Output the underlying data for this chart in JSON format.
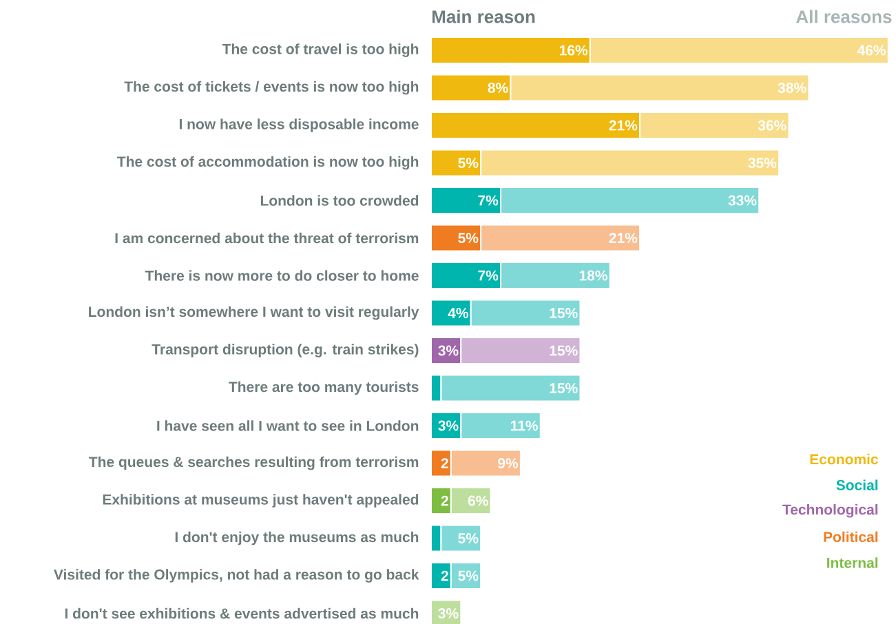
{
  "chart_data": {
    "type": "bar",
    "orientation": "horizontal",
    "stacked": true,
    "legend": "bottom right",
    "annotations": [
      "Main reason",
      "All reasons"
    ],
    "categories": [
      "The cost of travel is too high",
      "The cost of tickets / events is now too high",
      "I now have less disposable income",
      "The cost of accommodation is now too high",
      "London is too crowded",
      "I am concerned about the threat of terrorism",
      "There is now more to do closer to home",
      "London isn’t somewhere I want to visit regularly",
      "Transport disruption (e.g. train strikes)",
      "There are too many tourists",
      "I have seen all I want to see in London",
      "The queues & searches resulting from terrorism",
      "Exhibitions at museums just haven't appealed",
      "I don't enjoy the museums as much",
      "Visited for the Olympics, not had a reason to go back",
      "I don't see exhibitions & events advertised as much"
    ],
    "totals": [
      "46%",
      "38%",
      "36%",
      "35%",
      "33%",
      "21%",
      "18%",
      "15%",
      "15%",
      "15%",
      "11%",
      "9%",
      "6%",
      "5%",
      "5%",
      "3%"
    ],
    "series": [
      {
        "name": "Economic",
        "color": "#f0b910",
        "values": [
          16,
          8,
          21,
          5,
          null,
          null,
          null,
          null,
          null,
          null,
          null,
          null,
          null,
          null,
          null,
          null
        ],
        "value_labels": [
          "16%",
          "8%",
          "21%",
          "5%",
          null,
          null,
          null,
          null,
          null,
          null,
          null,
          null,
          null,
          null,
          null,
          null
        ]
      },
      {
        "name": "Social",
        "color": "#00b5ad",
        "values": [
          null,
          null,
          null,
          null,
          7,
          null,
          7,
          4,
          null,
          1,
          3,
          null,
          null,
          1,
          2,
          null
        ],
        "value_labels": [
          null,
          null,
          null,
          null,
          "7%",
          null,
          "7%",
          "4%",
          null,
          null,
          "3%",
          null,
          null,
          null,
          "2",
          null
        ]
      },
      {
        "name": "Technological",
        "color": "#a066aa",
        "values": [
          null,
          null,
          null,
          null,
          null,
          null,
          null,
          null,
          3,
          null,
          null,
          null,
          null,
          null,
          null,
          null
        ],
        "value_labels": [
          null,
          null,
          null,
          null,
          null,
          null,
          null,
          null,
          "3%",
          null,
          null,
          null,
          null,
          null,
          null,
          null
        ]
      },
      {
        "name": "Political",
        "color": "#f07c22",
        "values": [
          null,
          null,
          null,
          null,
          null,
          5,
          null,
          null,
          null,
          null,
          null,
          2,
          null,
          null,
          null,
          null
        ],
        "value_labels": [
          null,
          null,
          null,
          null,
          null,
          "5%",
          null,
          null,
          null,
          null,
          null,
          "2",
          null,
          null,
          null,
          null
        ]
      },
      {
        "name": "Internal",
        "color": "#7dbd42",
        "values": [
          null,
          null,
          null,
          null,
          null,
          null,
          null,
          null,
          null,
          null,
          null,
          null,
          2,
          null,
          null,
          null
        ],
        "value_labels": [
          null,
          null,
          null,
          null,
          null,
          null,
          null,
          null,
          null,
          null,
          null,
          null,
          "2",
          null,
          null,
          null
        ]
      },
      {
        "color": "#f8dc8a",
        "values": [
          30,
          30,
          15,
          30,
          null,
          null,
          null,
          null,
          null,
          null,
          null,
          null,
          null,
          null,
          null,
          null
        ]
      },
      {
        "color": "#80d9d6",
        "values": [
          null,
          null,
          null,
          null,
          26,
          null,
          11,
          11,
          null,
          14,
          8,
          null,
          null,
          4,
          3,
          null
        ]
      },
      {
        "color": "#d0b3d5",
        "values": [
          null,
          null,
          null,
          null,
          null,
          null,
          null,
          null,
          12,
          null,
          null,
          null,
          null,
          null,
          null,
          null
        ]
      },
      {
        "color": "#f8be91",
        "values": [
          null,
          null,
          null,
          null,
          null,
          16,
          null,
          null,
          null,
          null,
          null,
          7,
          null,
          null,
          null,
          null
        ]
      },
      {
        "color": "#bede9e",
        "values": [
          null,
          null,
          null,
          null,
          null,
          null,
          null,
          null,
          null,
          null,
          null,
          null,
          4,
          null,
          null,
          3
        ]
      }
    ]
  }
}
